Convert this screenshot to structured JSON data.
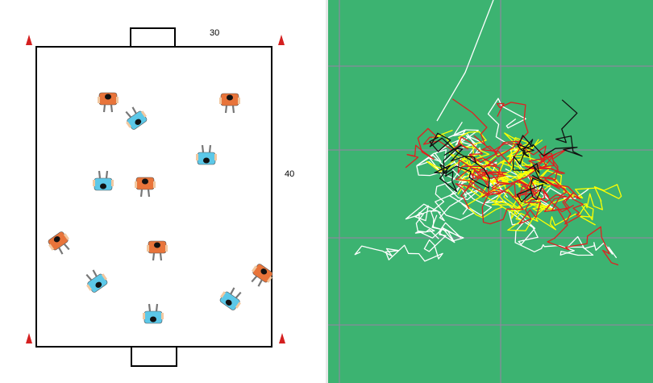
{
  "drill_diagram": {
    "width_label": "30",
    "height_label": "40",
    "colors": {
      "orange_team": "#e8743a",
      "blue_team": "#5cc8e8",
      "cone": "#d42020",
      "pitch_line": "#000000"
    },
    "players": [
      {
        "team": "orange",
        "facing": "down"
      },
      {
        "team": "blue",
        "facing": "up-left"
      },
      {
        "team": "orange",
        "facing": "down"
      },
      {
        "team": "blue",
        "facing": "up"
      },
      {
        "team": "blue",
        "facing": "up"
      },
      {
        "team": "orange",
        "facing": "down"
      },
      {
        "team": "orange",
        "facing": "down-right"
      },
      {
        "team": "orange",
        "facing": "down"
      },
      {
        "team": "blue",
        "facing": "up-left"
      },
      {
        "team": "orange",
        "facing": "down-left"
      },
      {
        "team": "blue",
        "facing": "up-right"
      },
      {
        "team": "blue",
        "facing": "up"
      }
    ]
  },
  "tracking_view": {
    "colors": {
      "pitch": "#3cb371",
      "grid": "#9b7fa8",
      "track_colors": [
        "#ffffff",
        "#ffff00",
        "#e02020",
        "#111111"
      ]
    }
  }
}
